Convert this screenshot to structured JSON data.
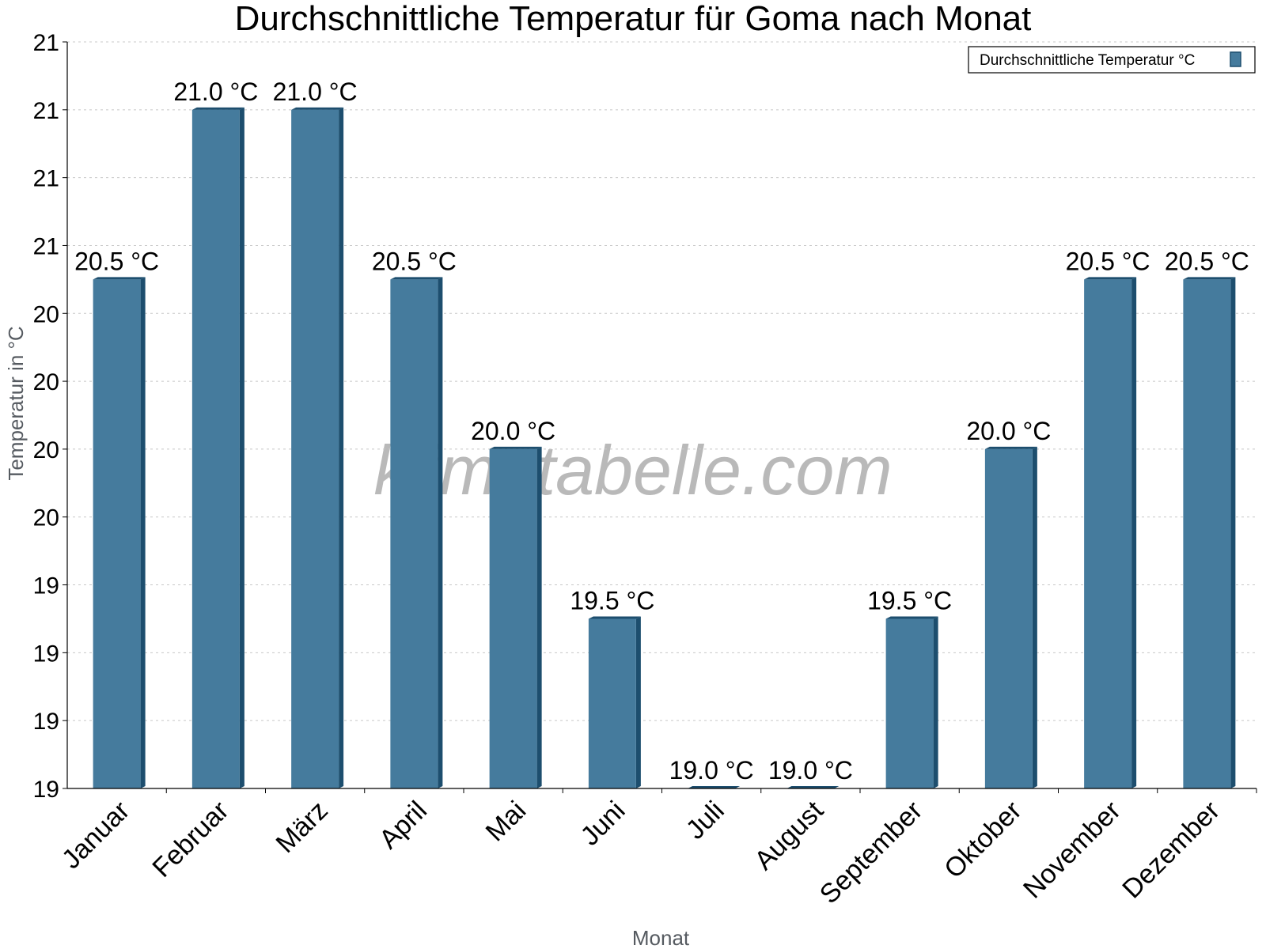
{
  "chart_data": {
    "type": "bar",
    "title": "Durchschnittliche Temperatur für Goma nach Monat",
    "xlabel": "Monat",
    "ylabel": "Temperatur in °C",
    "ylim": [
      19.0,
      21.2
    ],
    "y_tick_values": [
      19.0,
      19.2,
      19.4,
      19.6,
      19.8,
      20.0,
      20.2,
      20.4,
      20.6,
      20.8,
      21.0,
      21.2
    ],
    "y_tick_labels": [
      "19",
      "19",
      "19",
      "19",
      "20",
      "20",
      "20",
      "20",
      "21",
      "21",
      "21",
      "21"
    ],
    "grid": true,
    "legend_position": "top-right",
    "categories": [
      "Januar",
      "Februar",
      "März",
      "April",
      "Mai",
      "Juni",
      "Juli",
      "August",
      "September",
      "Oktober",
      "November",
      "Dezember"
    ],
    "series": [
      {
        "name": "Durchschnittliche Temperatur °C",
        "values": [
          20.5,
          21.0,
          21.0,
          20.5,
          20.0,
          19.5,
          19.0,
          19.0,
          19.5,
          20.0,
          20.5,
          20.5
        ],
        "labels": [
          "20.5 °C",
          "21.0 °C",
          "21.0 °C",
          "20.5 °C",
          "20.0 °C",
          "19.5 °C",
          "19.0 °C",
          "19.0 °C",
          "19.5 °C",
          "20.0 °C",
          "20.5 °C",
          "20.5 °C"
        ],
        "color": "#457b9d",
        "side_color": "#1d4e6e"
      }
    ]
  },
  "watermark": "klimatabelle.com"
}
